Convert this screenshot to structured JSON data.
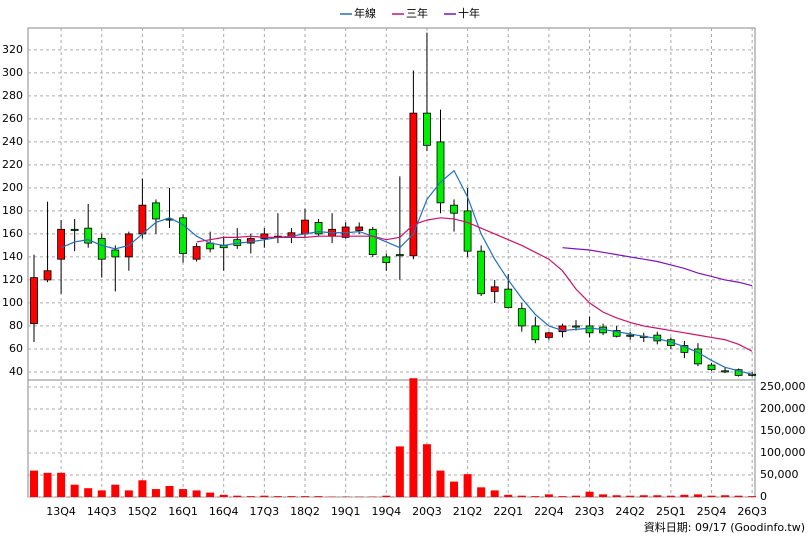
{
  "chart_data": {
    "type": "candlestick",
    "categories": [
      null,
      null,
      "13Q4",
      null,
      null,
      "14Q3",
      null,
      null,
      "15Q2",
      null,
      null,
      "16Q1",
      null,
      null,
      "16Q4",
      null,
      null,
      "17Q3",
      null,
      null,
      "18Q2",
      null,
      null,
      "19Q1",
      null,
      null,
      "19Q4",
      null,
      null,
      "20Q3",
      null,
      null,
      "21Q2",
      null,
      null,
      "22Q1",
      null,
      null,
      "22Q4",
      null,
      null,
      "23Q3",
      null,
      null,
      "24Q2",
      null,
      null,
      "25Q1",
      null,
      null,
      "25Q4",
      null,
      null,
      "26Q3"
    ],
    "open": [
      82,
      120,
      138,
      164,
      165,
      156,
      146,
      140,
      160,
      187,
      173,
      174,
      138,
      152,
      150,
      155,
      152,
      156,
      157,
      157,
      160,
      170,
      158,
      157,
      163,
      164,
      140,
      142,
      141,
      265,
      240,
      185,
      180,
      145,
      110,
      112,
      95,
      80,
      70,
      75,
      80,
      80,
      79,
      76,
      72,
      71,
      72,
      68,
      63,
      60,
      46,
      41,
      42,
      38
    ],
    "high": [
      142,
      188,
      172,
      173,
      186,
      160,
      150,
      162,
      208,
      190,
      200,
      177,
      152,
      162,
      158,
      165,
      160,
      165,
      178,
      165,
      182,
      173,
      178,
      170,
      170,
      166,
      143,
      210,
      302,
      335,
      268,
      190,
      200,
      150,
      120,
      125,
      100,
      88,
      75,
      82,
      85,
      88,
      82,
      80,
      75,
      74,
      75,
      70,
      67,
      65,
      48,
      44,
      43,
      40
    ],
    "low": [
      66,
      118,
      108,
      145,
      148,
      122,
      110,
      128,
      156,
      160,
      165,
      135,
      136,
      144,
      128,
      147,
      143,
      148,
      152,
      152,
      157,
      158,
      152,
      156,
      160,
      140,
      128,
      120,
      138,
      232,
      178,
      162,
      140,
      106,
      100,
      95,
      75,
      65,
      68,
      70,
      76,
      70,
      72,
      70,
      68,
      66,
      64,
      60,
      52,
      45,
      41,
      39,
      36,
      36
    ],
    "close": [
      122,
      128,
      164,
      163,
      152,
      138,
      140,
      160,
      185,
      173,
      172,
      143,
      149,
      147,
      148,
      150,
      156,
      160,
      158,
      161,
      172,
      160,
      164,
      166,
      166,
      142,
      135,
      141,
      265,
      237,
      187,
      178,
      145,
      108,
      114,
      96,
      80,
      68,
      74,
      80,
      79,
      74,
      74,
      71,
      71,
      70,
      67,
      63,
      57,
      47,
      42,
      40,
      37,
      37
    ],
    "up_color": "#ff0000",
    "down_color": "#00ee00",
    "series": [
      {
        "name": "年線",
        "color": "#1f70c0",
        "values": [
          null,
          null,
          148,
          153,
          155,
          150,
          147,
          150,
          160,
          170,
          174,
          168,
          158,
          152,
          150,
          152,
          153,
          155,
          157,
          158,
          160,
          162,
          161,
          161,
          162,
          158,
          153,
          148,
          160,
          190,
          205,
          215,
          192,
          160,
          138,
          120,
          104,
          90,
          80,
          76,
          77,
          78,
          77,
          75,
          73,
          71,
          69,
          66,
          62,
          57,
          50,
          44,
          41,
          38
        ]
      },
      {
        "name": "三年",
        "color": "#d0106a",
        "values": [
          null,
          null,
          null,
          null,
          null,
          null,
          null,
          null,
          null,
          null,
          null,
          null,
          153,
          155,
          157,
          157,
          158,
          157,
          157,
          157,
          157,
          158,
          158,
          158,
          158,
          158,
          155,
          157,
          168,
          172,
          174,
          173,
          170,
          165,
          160,
          155,
          150,
          144,
          138,
          128,
          112,
          100,
          92,
          87,
          83,
          80,
          78,
          76,
          74,
          72,
          70,
          68,
          64,
          58
        ]
      },
      {
        "name": "十年",
        "color": "#8010c0",
        "values": [
          null,
          null,
          null,
          null,
          null,
          null,
          null,
          null,
          null,
          null,
          null,
          null,
          null,
          null,
          null,
          null,
          null,
          null,
          null,
          null,
          null,
          null,
          null,
          null,
          null,
          null,
          null,
          null,
          null,
          null,
          null,
          null,
          null,
          null,
          null,
          null,
          null,
          null,
          null,
          148,
          147,
          146,
          144,
          142,
          140,
          138,
          136,
          133,
          130,
          126,
          123,
          120,
          118,
          115
        ]
      }
    ],
    "volume": {
      "color": "#ff0000",
      "values": [
        60000,
        55000,
        55000,
        28000,
        20000,
        15000,
        28000,
        15000,
        38000,
        18000,
        25000,
        18000,
        15000,
        10000,
        5000,
        3000,
        2000,
        3000,
        2000,
        2000,
        2000,
        2000,
        1000,
        1000,
        1000,
        1000,
        3000,
        115000,
        270000,
        120000,
        60000,
        35000,
        52000,
        22000,
        15000,
        5000,
        3000,
        2000,
        6000,
        2000,
        3000,
        12000,
        6000,
        4000,
        3000,
        4000,
        4000,
        3000,
        5000,
        6000,
        3000,
        4000,
        3000,
        2000
      ]
    },
    "ylim": [
      33,
      339
    ],
    "yticks": [
      40,
      60,
      80,
      100,
      120,
      140,
      160,
      180,
      200,
      220,
      240,
      260,
      280,
      300,
      320
    ],
    "y2lim": [
      0,
      266000
    ],
    "y2ticks": [
      0,
      {
        "value": 50000,
        "label": "50,000"
      },
      {
        "value": 100000,
        "label": "100,000"
      },
      {
        "value": 150000,
        "label": "150,000"
      },
      {
        "value": 200000,
        "label": "200,000"
      },
      {
        "value": 250000,
        "label": "250,000"
      }
    ],
    "grid": true,
    "source": "資料日期: 09/17 (Goodinfo.tw)"
  }
}
